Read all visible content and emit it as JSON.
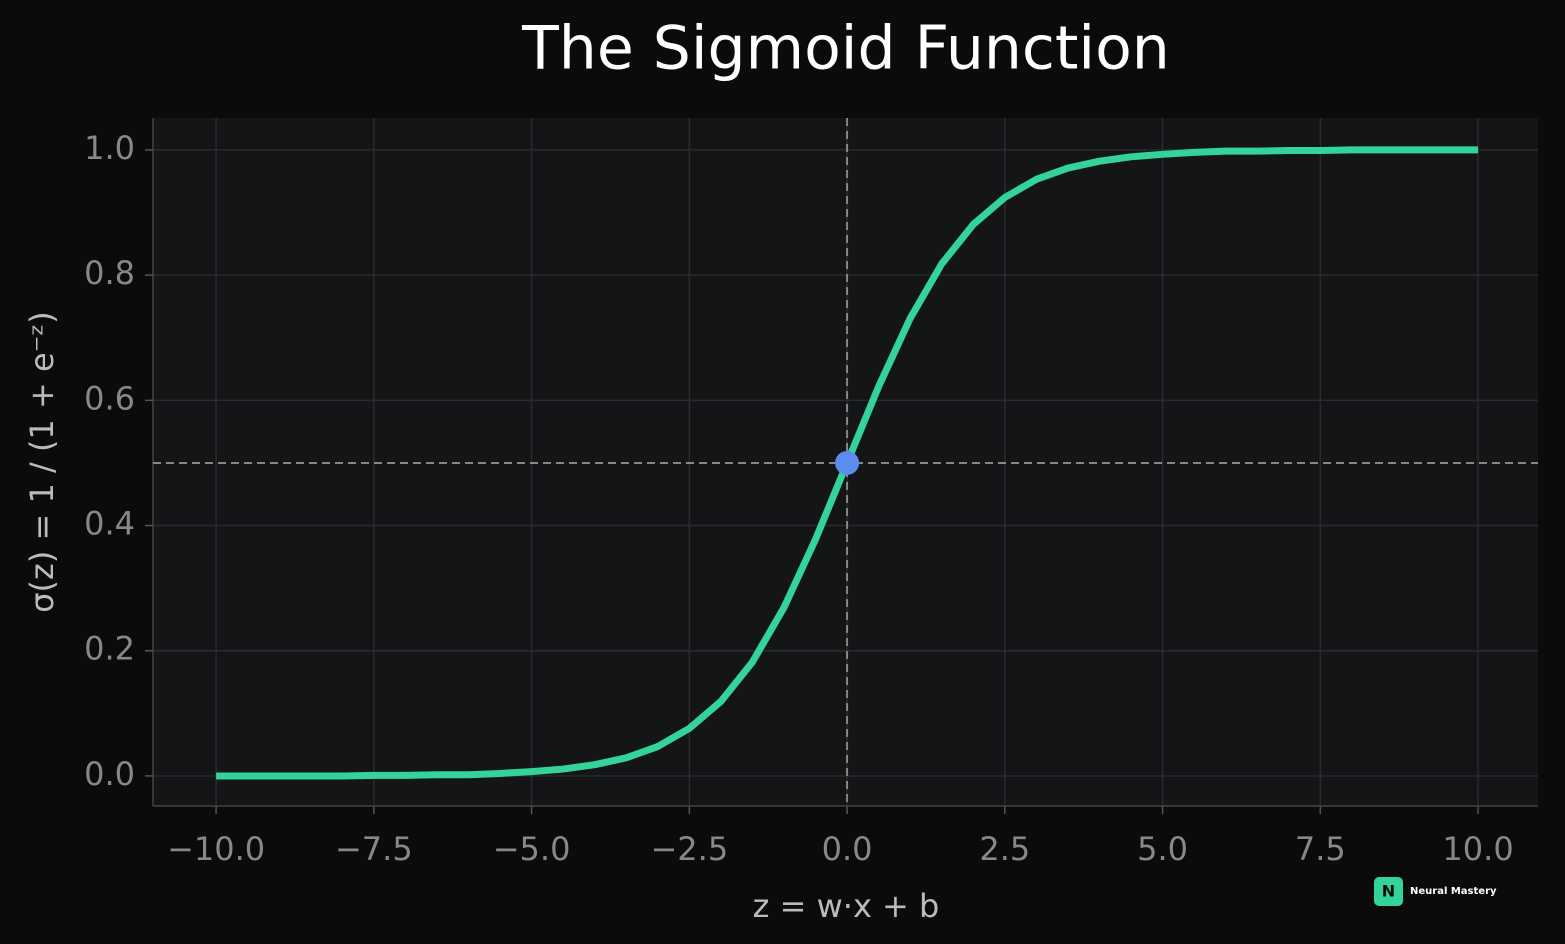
{
  "chart_data": {
    "type": "line",
    "title": "The Sigmoid Function",
    "x_label": "z = w·x + b",
    "y_label": "σ(z) = 1 / (1 + e⁻ᶻ)",
    "x": [
      -10,
      -9.5,
      -9,
      -8.5,
      -8,
      -7.5,
      -7,
      -6.5,
      -6,
      -5.5,
      -5,
      -4.5,
      -4,
      -3.5,
      -3,
      -2.5,
      -2,
      -1.5,
      -1,
      -0.5,
      0,
      0.5,
      1,
      1.5,
      2,
      2.5,
      3,
      3.5,
      4,
      4.5,
      5,
      5.5,
      6,
      6.5,
      7,
      7.5,
      8,
      8.5,
      9,
      9.5,
      10
    ],
    "series": [
      {
        "color": "#34d399",
        "values": [
          0,
          0,
          0,
          0,
          0,
          0.001,
          0.001,
          0.002,
          0.002,
          0.004,
          0.007,
          0.011,
          0.018,
          0.029,
          0.047,
          0.076,
          0.119,
          0.182,
          0.269,
          0.378,
          0.5,
          0.622,
          0.731,
          0.818,
          0.881,
          0.924,
          0.953,
          0.971,
          0.982,
          0.989,
          0.993,
          0.996,
          0.998,
          0.998,
          0.999,
          0.999,
          1,
          1,
          1,
          1,
          1
        ]
      }
    ],
    "highlight": {
      "x": 0,
      "y": 0.5,
      "color": "#5b8def"
    },
    "vline": 0,
    "hline": 0.5,
    "xlim": [
      -11,
      10.95
    ],
    "ylim": [
      -0.048,
      1.051
    ],
    "xticks": [
      {
        "value": -10,
        "label": "−10.0"
      },
      {
        "value": -7.5,
        "label": "−7.5"
      },
      {
        "value": -5,
        "label": "−5.0"
      },
      {
        "value": -2.5,
        "label": "−2.5"
      },
      {
        "value": 0,
        "label": "0.0"
      },
      2.5,
      {
        "value": 5,
        "label": "5.0"
      },
      7.5,
      {
        "value": 10,
        "label": "10.0"
      }
    ],
    "yticks": [
      {
        "value": 0,
        "label": "0.0"
      },
      0.2,
      0.4,
      0.6,
      0.8,
      {
        "value": 1,
        "label": "1.0"
      }
    ],
    "grid": true
  },
  "logo": {
    "letter": "N",
    "text": "Neural Mastery"
  }
}
